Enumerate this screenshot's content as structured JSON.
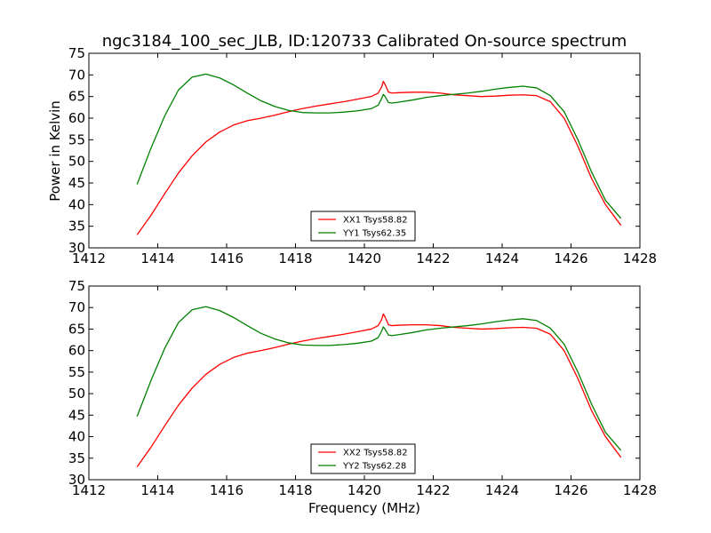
{
  "chart_data": [
    {
      "type": "line",
      "title": "ngc3184_100_sec_JLB, ID:120733 Calibrated On-source spectrum",
      "xlabel": "",
      "ylabel": "Power in Kelvin",
      "xlim": [
        1412,
        1428
      ],
      "ylim": [
        30,
        75
      ],
      "xticks": [
        1412,
        1414,
        1416,
        1418,
        1420,
        1422,
        1424,
        1426,
        1428
      ],
      "yticks": [
        30,
        35,
        40,
        45,
        50,
        55,
        60,
        65,
        70,
        75
      ],
      "grid": false,
      "legend_position": "lower-center",
      "series": [
        {
          "name": "XX1 Tsys58.82",
          "color": "#ff0000",
          "x": [
            1413.4,
            1413.8,
            1414.2,
            1414.6,
            1415.0,
            1415.4,
            1415.8,
            1416.2,
            1416.6,
            1417.0,
            1417.4,
            1417.8,
            1418.2,
            1418.6,
            1419.0,
            1419.4,
            1419.8,
            1420.2,
            1420.4,
            1420.5,
            1420.55,
            1420.6,
            1420.7,
            1420.8,
            1421.0,
            1421.4,
            1421.8,
            1422.2,
            1422.6,
            1423.0,
            1423.4,
            1423.8,
            1424.2,
            1424.6,
            1425.0,
            1425.4,
            1425.8,
            1426.2,
            1426.6,
            1427.0,
            1427.45
          ],
          "y": [
            33.0,
            37.5,
            42.5,
            47.3,
            51.3,
            54.5,
            56.8,
            58.4,
            59.4,
            60.0,
            60.7,
            61.5,
            62.2,
            62.8,
            63.3,
            63.8,
            64.4,
            65.0,
            65.8,
            67.2,
            68.5,
            67.8,
            66.0,
            65.8,
            65.9,
            66.0,
            66.0,
            65.8,
            65.4,
            65.2,
            65.0,
            65.1,
            65.3,
            65.4,
            65.2,
            63.8,
            60.0,
            53.5,
            46.0,
            40.0,
            35.2
          ]
        },
        {
          "name": "YY1 Tsys62.35",
          "color": "#008000",
          "x": [
            1413.4,
            1413.8,
            1414.2,
            1414.6,
            1415.0,
            1415.4,
            1415.8,
            1416.2,
            1416.6,
            1417.0,
            1417.4,
            1417.8,
            1418.2,
            1418.6,
            1419.0,
            1419.4,
            1419.8,
            1420.2,
            1420.4,
            1420.5,
            1420.55,
            1420.6,
            1420.7,
            1420.8,
            1421.0,
            1421.4,
            1421.8,
            1422.2,
            1422.6,
            1423.0,
            1423.4,
            1423.8,
            1424.2,
            1424.6,
            1425.0,
            1425.4,
            1425.8,
            1426.2,
            1426.6,
            1427.0,
            1427.45
          ],
          "y": [
            44.7,
            53.0,
            60.5,
            66.5,
            69.5,
            70.2,
            69.3,
            67.7,
            65.8,
            64.0,
            62.7,
            61.8,
            61.3,
            61.2,
            61.2,
            61.4,
            61.7,
            62.2,
            63.0,
            64.5,
            65.5,
            65.0,
            63.6,
            63.5,
            63.7,
            64.2,
            64.8,
            65.2,
            65.5,
            65.8,
            66.2,
            66.7,
            67.1,
            67.4,
            67.0,
            65.2,
            61.5,
            55.0,
            47.5,
            41.0,
            36.8
          ]
        }
      ]
    },
    {
      "type": "line",
      "title": "",
      "xlabel": "Frequency (MHz)",
      "ylabel": "",
      "xlim": [
        1412,
        1428
      ],
      "ylim": [
        30,
        75
      ],
      "xticks": [
        1412,
        1414,
        1416,
        1418,
        1420,
        1422,
        1424,
        1426,
        1428
      ],
      "yticks": [
        30,
        35,
        40,
        45,
        50,
        55,
        60,
        65,
        70,
        75
      ],
      "grid": false,
      "legend_position": "lower-center",
      "series": [
        {
          "name": "XX2 Tsys58.82",
          "color": "#ff0000",
          "x": [
            1413.4,
            1413.8,
            1414.2,
            1414.6,
            1415.0,
            1415.4,
            1415.8,
            1416.2,
            1416.6,
            1417.0,
            1417.4,
            1417.8,
            1418.2,
            1418.6,
            1419.0,
            1419.4,
            1419.8,
            1420.2,
            1420.4,
            1420.5,
            1420.55,
            1420.6,
            1420.7,
            1420.8,
            1421.0,
            1421.4,
            1421.8,
            1422.2,
            1422.6,
            1423.0,
            1423.4,
            1423.8,
            1424.2,
            1424.6,
            1425.0,
            1425.4,
            1425.8,
            1426.2,
            1426.6,
            1427.0,
            1427.45
          ],
          "y": [
            33.0,
            37.5,
            42.5,
            47.3,
            51.3,
            54.5,
            56.8,
            58.4,
            59.4,
            60.0,
            60.7,
            61.5,
            62.2,
            62.8,
            63.3,
            63.8,
            64.4,
            65.0,
            65.8,
            67.2,
            68.5,
            67.8,
            66.0,
            65.8,
            65.9,
            66.0,
            66.0,
            65.8,
            65.4,
            65.2,
            65.0,
            65.1,
            65.3,
            65.4,
            65.2,
            63.8,
            60.0,
            53.5,
            46.0,
            40.0,
            35.2
          ]
        },
        {
          "name": "YY2 Tsys62.28",
          "color": "#008000",
          "x": [
            1413.4,
            1413.8,
            1414.2,
            1414.6,
            1415.0,
            1415.4,
            1415.8,
            1416.2,
            1416.6,
            1417.0,
            1417.4,
            1417.8,
            1418.2,
            1418.6,
            1419.0,
            1419.4,
            1419.8,
            1420.2,
            1420.4,
            1420.5,
            1420.55,
            1420.6,
            1420.7,
            1420.8,
            1421.0,
            1421.4,
            1421.8,
            1422.2,
            1422.6,
            1423.0,
            1423.4,
            1423.8,
            1424.2,
            1424.6,
            1425.0,
            1425.4,
            1425.8,
            1426.2,
            1426.6,
            1427.0,
            1427.45
          ],
          "y": [
            44.7,
            53.0,
            60.5,
            66.5,
            69.5,
            70.2,
            69.3,
            67.7,
            65.8,
            64.0,
            62.7,
            61.8,
            61.3,
            61.2,
            61.2,
            61.4,
            61.7,
            62.2,
            63.0,
            64.5,
            65.5,
            65.0,
            63.6,
            63.5,
            63.7,
            64.2,
            64.8,
            65.2,
            65.5,
            65.8,
            66.2,
            66.7,
            67.1,
            67.4,
            67.0,
            65.2,
            61.5,
            55.0,
            47.5,
            41.0,
            36.8
          ]
        }
      ]
    }
  ]
}
